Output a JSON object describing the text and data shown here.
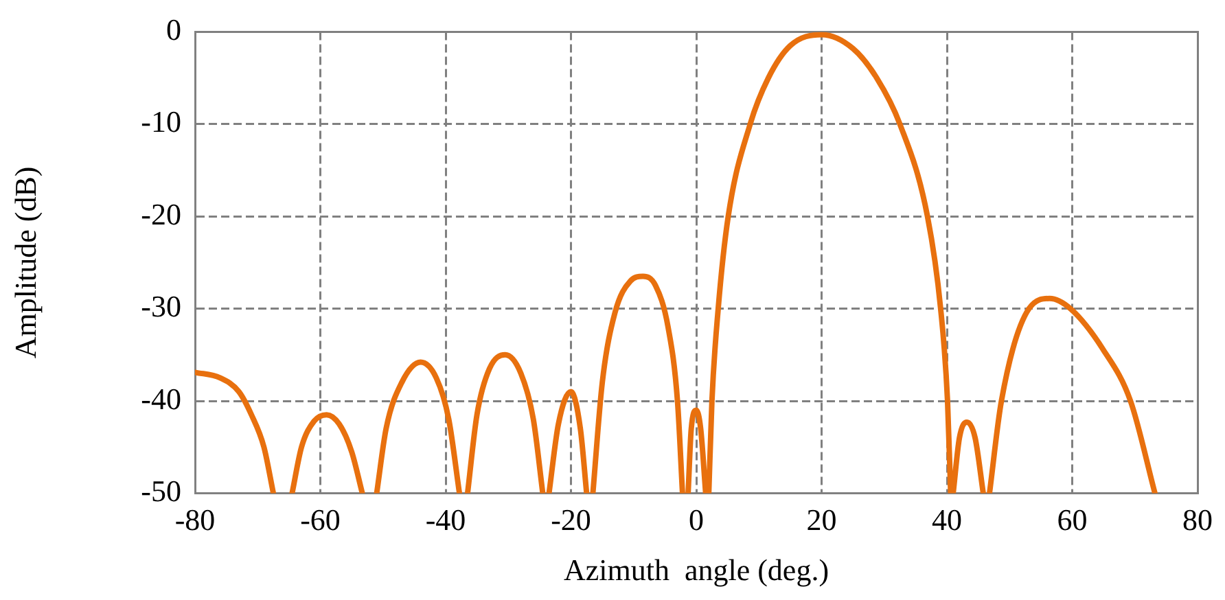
{
  "chart_data": {
    "type": "line",
    "xlabel": "Azimuth  angle (deg.)",
    "ylabel": "Amplitude (dB)",
    "xlim": [
      -80,
      80
    ],
    "xticks": [
      -80,
      -60,
      -40,
      -20,
      0,
      20,
      40,
      60,
      80
    ],
    "ylim": [
      -50,
      0
    ],
    "yticks": [
      -50,
      -40,
      -30,
      -20,
      -10,
      0
    ],
    "grid": true,
    "line_style": "solid",
    "marker": "none",
    "series": [
      {
        "color": "#e8700e",
        "x": [
          -80,
          -76,
          -73,
          -71,
          -69,
          -67.5,
          -66,
          -64.5,
          -63,
          -61,
          -59,
          -57,
          -55,
          -53.3,
          -52,
          -51,
          -49.5,
          -47,
          -44,
          -41.5,
          -39.5,
          -37.8,
          -37,
          -36.5,
          -35,
          -33,
          -30.5,
          -28,
          -26,
          -24.5,
          -24,
          -23.5,
          -22,
          -20,
          -18.5,
          -17.5,
          -17,
          -16.5,
          -15,
          -13,
          -10.5,
          -8.5,
          -6.5,
          -4.5,
          -3,
          -2.2,
          -1.8,
          -1.3,
          -0.8,
          0,
          0.7,
          1.5,
          1.8,
          2,
          2.5,
          3.5,
          5.1,
          8.6,
          11.5,
          15,
          20,
          25,
          28.8,
          32.5,
          36.9,
          39,
          40.1,
          40.6,
          40.8,
          41,
          42,
          43.2,
          44.5,
          45.8,
          46.3,
          46.8,
          48.7,
          53.1,
          56.4,
          59.7,
          65,
          69.3,
          73.2
        ],
        "values": [
          -36.9,
          -37.5,
          -39,
          -41.5,
          -45,
          -50,
          null,
          -50,
          -45,
          -42.2,
          -41.5,
          -42.5,
          -45.5,
          -50,
          null,
          -50,
          -43,
          -38,
          -35.8,
          -37.5,
          -42,
          -50,
          null,
          -50,
          -41.5,
          -36.5,
          -35,
          -37,
          -42,
          -50,
          null,
          -50,
          -42.5,
          -39,
          -43,
          -50,
          null,
          -50,
          -38,
          -30.5,
          -27,
          -26.5,
          -27.5,
          -32,
          -40,
          -50,
          null,
          -50,
          -43,
          -41,
          -43,
          -50,
          null,
          -50,
          -40,
          -30,
          -20,
          -10,
          -5,
          -1.5,
          -0.3,
          -1.8,
          -5,
          -10,
          -20,
          -30,
          -40,
          -50,
          null,
          -50,
          -44,
          -42.3,
          -44,
          -50,
          null,
          -50,
          -40,
          -30,
          -28.9,
          -30,
          -34.5,
          -40,
          -50
        ]
      }
    ]
  }
}
